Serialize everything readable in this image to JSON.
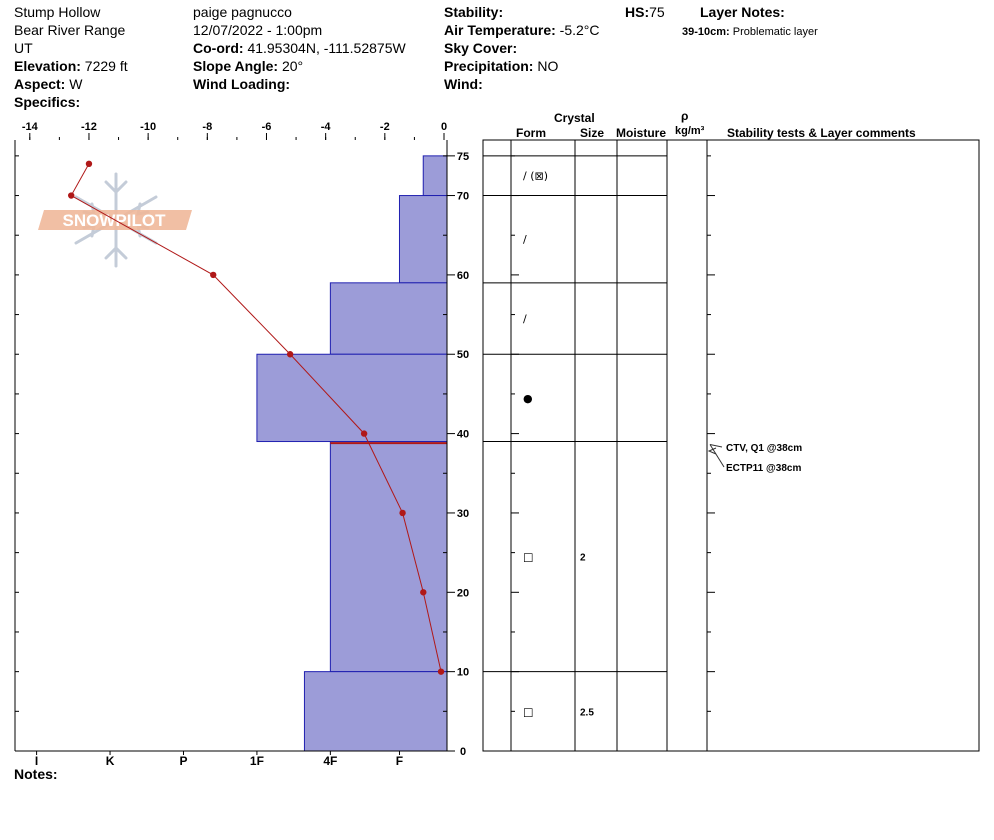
{
  "header": {
    "location": "Stump Hollow",
    "range": "Bear River Range",
    "state": "UT",
    "elevation_label": "Elevation:",
    "elevation": "7229 ft",
    "aspect_label": "Aspect:",
    "aspect": "W",
    "specifics_label": "Specifics:",
    "observer": "paige pagnucco",
    "datetime": "12/07/2022 - 1:00pm",
    "coord_label": "Co-ord:",
    "coord": "41.95304N, -111.52875W",
    "slope_label": "Slope Angle:",
    "slope": "20°",
    "wind_loading_label": "Wind Loading:",
    "stability_label": "Stability:",
    "air_temp_label": "Air Temperature:",
    "air_temp": "-5.2°C",
    "sky_cover_label": "Sky Cover:",
    "precip_label": "Precipitation:",
    "precip": "NO",
    "wind_label": "Wind:",
    "hs_label": "HS:",
    "hs": "75",
    "layer_notes_label": "Layer Notes:",
    "layer_note_range": "39-10cm:",
    "layer_note_text": "Problematic layer"
  },
  "columns": {
    "crystal": "Crystal",
    "form": "Form",
    "size": "Size",
    "moisture": "Moisture",
    "rho": "ρ",
    "density": "kg/m³",
    "comments": "Stability tests & Layer comments"
  },
  "notes_label": "Notes:",
  "logo_text": "SNOWPILOT",
  "colors": {
    "hardness_fill": "#9c9cd8",
    "hardness_stroke": "#2020b0",
    "temp_line": "#b01818",
    "layer_marker": "#b01818"
  },
  "chart_data": {
    "type": "snow-profile",
    "temp_axis": {
      "ticks": [
        -14,
        -12,
        -10,
        -8,
        -6,
        -4,
        -2,
        0
      ],
      "labels": [
        "-14",
        "-12",
        "-10",
        "-8",
        "-6",
        "-4",
        "-2",
        "0"
      ],
      "range": [
        -14.5,
        0
      ]
    },
    "depth_axis": {
      "ticks": [
        0,
        10,
        20,
        30,
        40,
        50,
        60,
        70,
        75
      ],
      "labels": [
        "0",
        "10",
        "20",
        "30",
        "40",
        "50",
        "60",
        "70",
        "75"
      ],
      "range": [
        0,
        77
      ]
    },
    "hardness_axis": {
      "labels": [
        "I",
        "K",
        "P",
        "1F",
        "4F",
        "F"
      ]
    },
    "temperature_profile": [
      {
        "depth": 74,
        "temp": -12.0
      },
      {
        "depth": 70,
        "temp": -12.6
      },
      {
        "depth": 60,
        "temp": -7.8
      },
      {
        "depth": 50,
        "temp": -5.2
      },
      {
        "depth": 40,
        "temp": -2.7
      },
      {
        "depth": 30,
        "temp": -1.4
      },
      {
        "depth": 20,
        "temp": -0.7
      },
      {
        "depth": 10,
        "temp": -0.1
      }
    ],
    "layers": [
      {
        "top": 75,
        "bottom": 70,
        "hardness_pct": 0.055,
        "form": "/ (⊠)",
        "size": ""
      },
      {
        "top": 70,
        "bottom": 59,
        "hardness_pct": 0.11,
        "form": "/",
        "size": ""
      },
      {
        "top": 59,
        "bottom": 50,
        "hardness_pct": 0.27,
        "form": "/",
        "size": ""
      },
      {
        "top": 50,
        "bottom": 39,
        "hardness_pct": 0.44,
        "form": "●",
        "size": ""
      },
      {
        "top": 39,
        "bottom": 10,
        "hardness_pct": 0.27,
        "form": "□",
        "size": "2"
      },
      {
        "top": 10,
        "bottom": 0,
        "hardness_pct": 0.33,
        "form": "□",
        "size": "2.5"
      }
    ],
    "problem_layer_depth": 38.8,
    "stability_tests": [
      "CTV, Q1 @38cm",
      "ECTP11 @38cm"
    ],
    "test_depth": 38
  }
}
